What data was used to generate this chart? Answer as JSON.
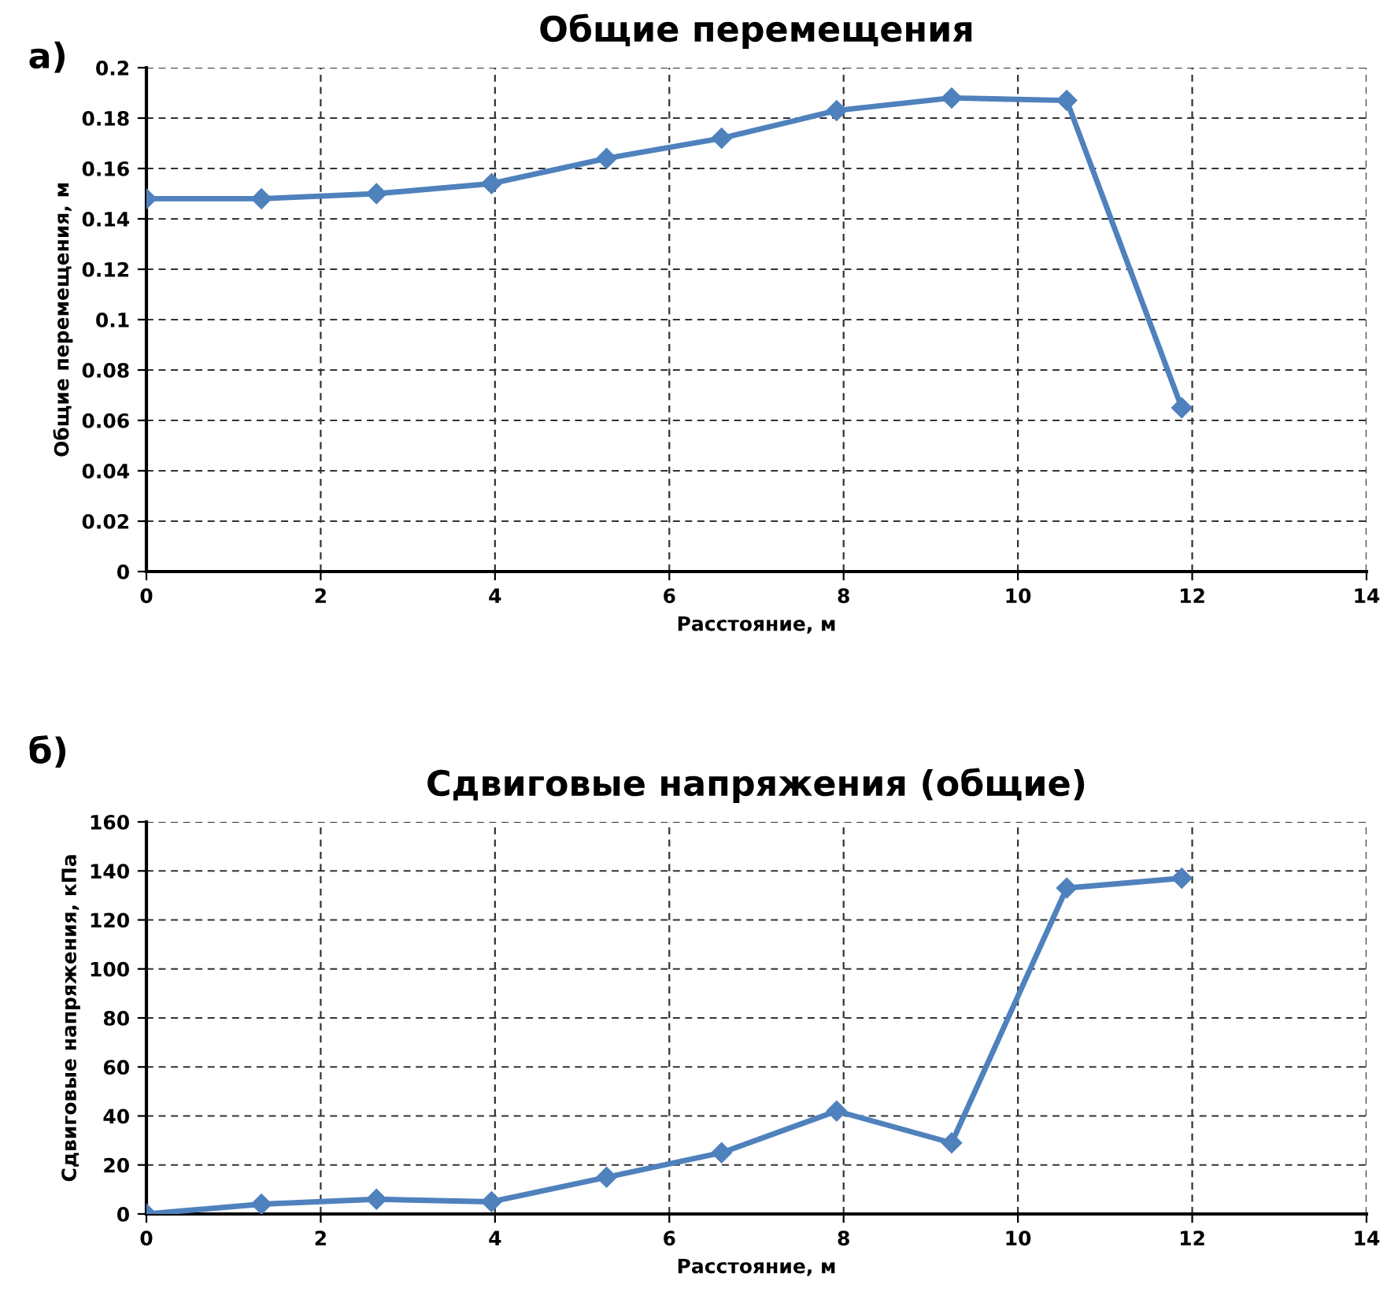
{
  "chart_data": [
    {
      "type": "line",
      "title": "Общие перемещения",
      "xlabel": "Расстояние, м",
      "ylabel": "Общие перемещения, м",
      "annotations": [
        "а)"
      ],
      "x": [
        0,
        1.32,
        2.64,
        3.96,
        5.28,
        6.6,
        7.92,
        9.24,
        10.56,
        11.88
      ],
      "series": [
        {
          "color": "#4f81bd",
          "values": [
            0.148,
            0.148,
            0.15,
            0.154,
            0.164,
            0.172,
            0.183,
            0.188,
            0.187,
            0.065
          ]
        }
      ],
      "xlim": [
        0,
        14
      ],
      "xticks": [
        0,
        2,
        4,
        6,
        8,
        10,
        12,
        14
      ],
      "ylim": [
        0,
        0.2
      ],
      "yticks": [
        0,
        0.02,
        0.04,
        0.06,
        0.08,
        0.1,
        0.12,
        0.14,
        0.16,
        0.18,
        0.2
      ],
      "grid": true,
      "marker": "diamond",
      "line_style": "solid",
      "legend": false
    },
    {
      "type": "line",
      "title": "Сдвиговые напряжения (общие)",
      "xlabel": "Расстояние, м",
      "ylabel": "Сдвиговые напряжения, кПа",
      "annotations": [
        "б)"
      ],
      "x": [
        0,
        1.32,
        2.64,
        3.96,
        5.28,
        6.6,
        7.92,
        9.24,
        10.56,
        11.88
      ],
      "series": [
        {
          "color": "#4f81bd",
          "values": [
            0,
            4,
            6,
            5,
            15,
            25,
            42,
            29,
            133,
            137
          ]
        }
      ],
      "xlim": [
        0,
        14
      ],
      "xticks": [
        0,
        2,
        4,
        6,
        8,
        10,
        12,
        14
      ],
      "ylim": [
        0,
        160
      ],
      "yticks": [
        0,
        20,
        40,
        60,
        80,
        100,
        120,
        140,
        160
      ],
      "grid": true,
      "marker": "diamond",
      "line_style": "solid",
      "legend": false
    }
  ]
}
